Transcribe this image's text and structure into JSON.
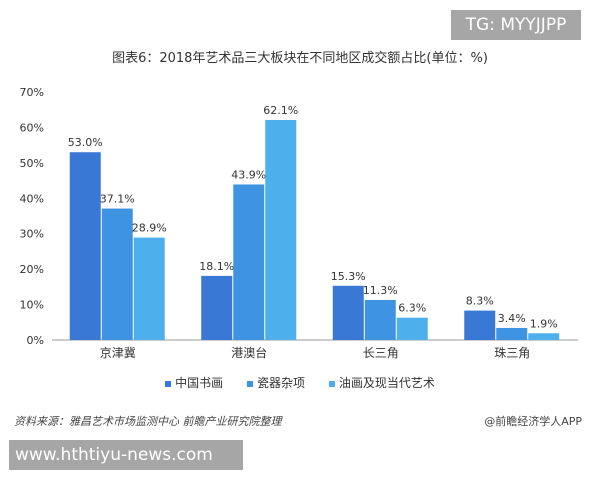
{
  "watermark_top": "TG: MYYJJPP",
  "watermark_bottom": "www.hthtiyu-news.com",
  "source": "资料来源：雅昌艺术市场监测中心 前瞻产业研究院整理",
  "credit": "@前瞻经济学人APP",
  "chart_data": {
    "type": "bar",
    "title": "图表6：2018年艺术品三大板块在不同地区成交额占比(单位：%)",
    "categories": [
      "京津冀",
      "港澳台",
      "长三角",
      "珠三角"
    ],
    "series": [
      {
        "name": "中国书画",
        "values": [
          53.0,
          18.1,
          15.3,
          8.3
        ],
        "color": "#3a78d6"
      },
      {
        "name": "瓷器杂项",
        "values": [
          37.1,
          43.9,
          11.3,
          3.4
        ],
        "color": "#3e94e2"
      },
      {
        "name": "油画及现当代艺术",
        "values": [
          28.9,
          62.1,
          6.3,
          1.9
        ],
        "color": "#4db0ec"
      }
    ],
    "ylim": [
      0,
      70
    ],
    "yticks": [
      "0%",
      "10%",
      "20%",
      "30%",
      "40%",
      "50%",
      "60%",
      "70%"
    ],
    "grid": false,
    "legend": "bottom",
    "xlabel": "",
    "ylabel": ""
  }
}
